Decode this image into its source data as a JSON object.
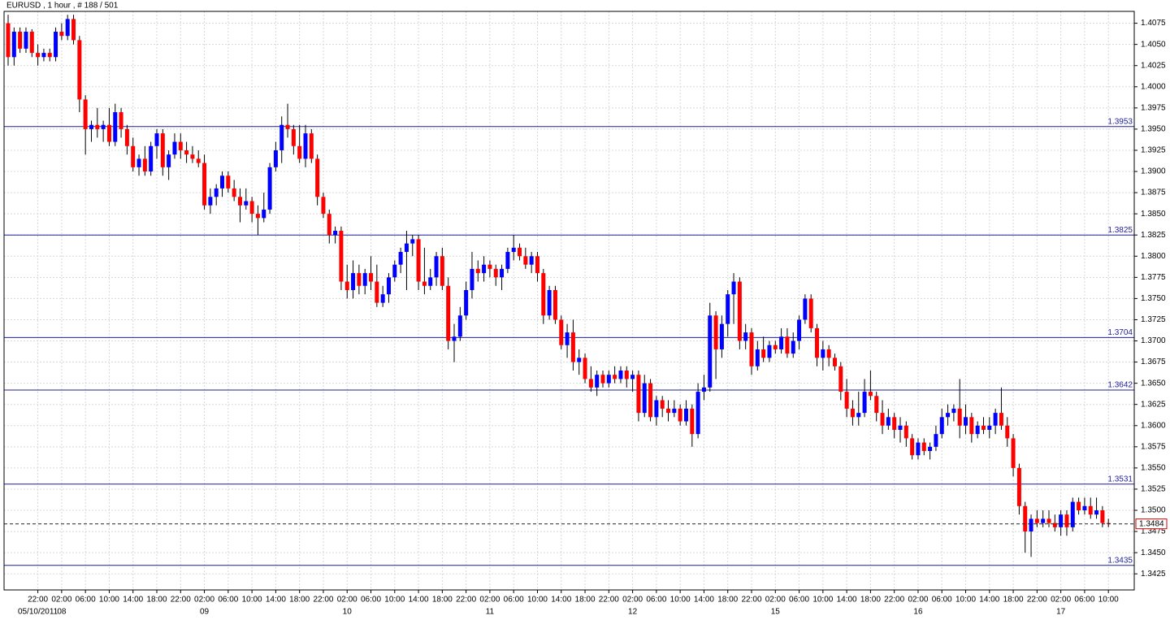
{
  "chart_data": {
    "type": "candlestick",
    "title": "EURUSD , 1 hour , # 188 / 501",
    "bull_color": "#0000ff",
    "bear_color": "#ff0000",
    "wick_color": "#000000",
    "level_color": "#1f1f9a",
    "grid": true,
    "ylim": [
      1.3406,
      1.4089
    ],
    "yticks": [
      1.4075,
      {
        "value": 1.405,
        "label": "1.4050"
      },
      1.4025,
      {
        "value": 1.4,
        "label": "1.4000"
      },
      1.3975,
      {
        "value": 1.395,
        "label": "1.3950"
      },
      1.3925,
      {
        "value": 1.39,
        "label": "1.3900"
      },
      1.3875,
      {
        "value": 1.385,
        "label": "1.3850"
      },
      1.3825,
      {
        "value": 1.38,
        "label": "1.3800"
      },
      1.3775,
      {
        "value": 1.375,
        "label": "1.3750"
      },
      1.3725,
      {
        "value": 1.37,
        "label": "1.3700"
      },
      1.3675,
      {
        "value": 1.365,
        "label": "1.3650"
      },
      1.3625,
      {
        "value": 1.36,
        "label": "1.3600"
      },
      1.3575,
      {
        "value": 1.355,
        "label": "1.3550"
      },
      1.3525,
      {
        "value": 1.35,
        "label": "1.3500"
      },
      1.3475,
      {
        "value": 1.345,
        "label": "1.3450"
      },
      1.3425
    ],
    "levels": [
      1.3953,
      1.3825,
      1.3704,
      1.3642,
      1.3531,
      1.3435
    ],
    "last_price": 1.3484,
    "time_labels": [
      "22:00",
      "02:00",
      "06:00",
      "10:00",
      "14:00",
      "18:00",
      "22:00",
      "02:00",
      "06:00",
      "10:00",
      "14:00",
      "18:00",
      "22:00",
      "02:00",
      "06:00",
      "10:00",
      "14:00",
      "18:00",
      "22:00",
      "02:00",
      "06:00",
      "10:00",
      "14:00",
      "18:00",
      "22:00",
      "02:00",
      "06:00",
      "10:00",
      "14:00",
      "18:00",
      "22:00",
      "02:00",
      "06:00",
      "10:00",
      "14:00",
      "18:00",
      "22:00",
      "02:00",
      "06:00",
      "10:00",
      "14:00",
      "18:00",
      "22:00",
      "02:00",
      "06:00",
      "10:00"
    ],
    "dates": [
      "05/10/2011",
      "08",
      null,
      null,
      null,
      null,
      null,
      "09",
      null,
      null,
      null,
      null,
      null,
      "10",
      null,
      null,
      null,
      null,
      null,
      "11",
      null,
      null,
      null,
      null,
      null,
      "12",
      null,
      null,
      null,
      null,
      null,
      "15",
      null,
      null,
      null,
      null,
      null,
      "16",
      null,
      null,
      null,
      null,
      null,
      "17",
      null,
      null
    ],
    "candles": [
      [
        1.4075,
        1.4085,
        1.4025,
        1.4035
      ],
      [
        1.4035,
        1.407,
        1.4025,
        1.4065
      ],
      [
        1.4065,
        1.407,
        1.404,
        1.4045
      ],
      [
        1.4045,
        1.407,
        1.404,
        1.4065
      ],
      [
        1.4065,
        1.4068,
        1.4035,
        1.404
      ],
      [
        1.404,
        1.405,
        1.4025,
        1.4035
      ],
      [
        1.4035,
        1.4045,
        1.403,
        1.404
      ],
      [
        1.404,
        1.4045,
        1.403,
        1.4035
      ],
      [
        1.4035,
        1.407,
        1.403,
        1.4065
      ],
      [
        1.4065,
        1.4075,
        1.4055,
        1.406
      ],
      [
        1.406,
        1.4085,
        1.4055,
        1.408
      ],
      [
        1.408,
        1.4085,
        1.405,
        1.4055
      ],
      [
        1.4055,
        1.406,
        1.397,
        1.3985
      ],
      [
        1.3985,
        1.399,
        1.392,
        1.395
      ],
      [
        1.395,
        1.396,
        1.3935,
        1.3955
      ],
      [
        1.3955,
        1.3975,
        1.394,
        1.395
      ],
      [
        1.395,
        1.396,
        1.3935,
        1.3955
      ],
      [
        1.3955,
        1.3975,
        1.393,
        1.3935
      ],
      [
        1.3935,
        1.398,
        1.393,
        1.397
      ],
      [
        1.397,
        1.3975,
        1.394,
        1.395
      ],
      [
        1.395,
        1.3955,
        1.392,
        1.393
      ],
      [
        1.393,
        1.394,
        1.39,
        1.3905
      ],
      [
        1.3905,
        1.392,
        1.3895,
        1.3915
      ],
      [
        1.3915,
        1.393,
        1.3895,
        1.39
      ],
      [
        1.39,
        1.3935,
        1.3895,
        1.393
      ],
      [
        1.393,
        1.395,
        1.3915,
        1.3945
      ],
      [
        1.3945,
        1.395,
        1.3895,
        1.3905
      ],
      [
        1.3905,
        1.3925,
        1.389,
        1.392
      ],
      [
        1.392,
        1.3945,
        1.3915,
        1.3935
      ],
      [
        1.3935,
        1.3945,
        1.3915,
        1.3925
      ],
      [
        1.3925,
        1.3935,
        1.391,
        1.392
      ],
      [
        1.392,
        1.393,
        1.391,
        1.3915
      ],
      [
        1.3915,
        1.3925,
        1.3905,
        1.391
      ],
      [
        1.391,
        1.392,
        1.3855,
        1.386
      ],
      [
        1.386,
        1.388,
        1.385,
        1.387
      ],
      [
        1.387,
        1.3885,
        1.386,
        1.388
      ],
      [
        1.388,
        1.39,
        1.387,
        1.3895
      ],
      [
        1.3895,
        1.39,
        1.3875,
        1.388
      ],
      [
        1.388,
        1.389,
        1.3865,
        1.387
      ],
      [
        1.387,
        1.388,
        1.384,
        1.386
      ],
      [
        1.386,
        1.388,
        1.3855,
        1.3865
      ],
      [
        1.3865,
        1.387,
        1.384,
        1.385
      ],
      [
        1.385,
        1.386,
        1.3825,
        1.3845
      ],
      [
        1.3845,
        1.3875,
        1.384,
        1.3855
      ],
      [
        1.3855,
        1.391,
        1.385,
        1.3905
      ],
      [
        1.3905,
        1.3935,
        1.39,
        1.3925
      ],
      [
        1.3925,
        1.3965,
        1.391,
        1.3955
      ],
      [
        1.3955,
        1.398,
        1.394,
        1.395
      ],
      [
        1.395,
        1.3955,
        1.392,
        1.393
      ],
      [
        1.393,
        1.3955,
        1.391,
        1.3915
      ],
      [
        1.3915,
        1.3955,
        1.3905,
        1.3945
      ],
      [
        1.3945,
        1.395,
        1.391,
        1.3915
      ],
      [
        1.3915,
        1.392,
        1.386,
        1.387
      ],
      [
        1.387,
        1.3875,
        1.3845,
        1.385
      ],
      [
        1.385,
        1.3855,
        1.3815,
        1.3825
      ],
      [
        1.3825,
        1.3835,
        1.3815,
        1.383
      ],
      [
        1.383,
        1.3835,
        1.376,
        1.377
      ],
      [
        1.377,
        1.379,
        1.375,
        1.376
      ],
      [
        1.376,
        1.3795,
        1.375,
        1.378
      ],
      [
        1.378,
        1.379,
        1.3755,
        1.3765
      ],
      [
        1.3765,
        1.3785,
        1.3755,
        1.378
      ],
      [
        1.378,
        1.38,
        1.376,
        1.377
      ],
      [
        1.377,
        1.379,
        1.374,
        1.3745
      ],
      [
        1.3745,
        1.3765,
        1.374,
        1.3755
      ],
      [
        1.3755,
        1.378,
        1.3745,
        1.3775
      ],
      [
        1.3775,
        1.3795,
        1.377,
        1.379
      ],
      [
        1.379,
        1.381,
        1.378,
        1.3805
      ],
      [
        1.3805,
        1.383,
        1.376,
        1.3815
      ],
      [
        1.3815,
        1.3825,
        1.38,
        1.382
      ],
      [
        1.382,
        1.3825,
        1.376,
        1.377
      ],
      [
        1.377,
        1.381,
        1.3755,
        1.3765
      ],
      [
        1.3765,
        1.3785,
        1.376,
        1.3775
      ],
      [
        1.3775,
        1.3805,
        1.3765,
        1.38
      ],
      [
        1.38,
        1.381,
        1.376,
        1.3765
      ],
      [
        1.3765,
        1.3775,
        1.369,
        1.37
      ],
      [
        1.37,
        1.372,
        1.3675,
        1.3705
      ],
      [
        1.3705,
        1.374,
        1.37,
        1.373
      ],
      [
        1.373,
        1.377,
        1.3725,
        1.376
      ],
      [
        1.376,
        1.3805,
        1.375,
        1.3785
      ],
      [
        1.3785,
        1.3795,
        1.377,
        1.378
      ],
      [
        1.378,
        1.38,
        1.377,
        1.379
      ],
      [
        1.379,
        1.3795,
        1.3775,
        1.3785
      ],
      [
        1.3785,
        1.379,
        1.3765,
        1.3775
      ],
      [
        1.3775,
        1.379,
        1.376,
        1.3785
      ],
      [
        1.3785,
        1.381,
        1.378,
        1.3805
      ],
      [
        1.3805,
        1.3825,
        1.3795,
        1.381
      ],
      [
        1.381,
        1.3815,
        1.3795,
        1.38
      ],
      [
        1.38,
        1.381,
        1.3785,
        1.379
      ],
      [
        1.379,
        1.3805,
        1.378,
        1.38
      ],
      [
        1.38,
        1.3805,
        1.377,
        1.378
      ],
      [
        1.378,
        1.3785,
        1.372,
        1.373
      ],
      [
        1.373,
        1.3765,
        1.3725,
        1.376
      ],
      [
        1.376,
        1.3765,
        1.372,
        1.3725
      ],
      [
        1.3725,
        1.373,
        1.369,
        1.3695
      ],
      [
        1.3695,
        1.372,
        1.368,
        1.371
      ],
      [
        1.371,
        1.3725,
        1.3665,
        1.3675
      ],
      [
        1.3675,
        1.369,
        1.366,
        1.368
      ],
      [
        1.368,
        1.3685,
        1.365,
        1.3655
      ],
      [
        1.3655,
        1.367,
        1.364,
        1.3645
      ],
      [
        1.3645,
        1.3665,
        1.3635,
        1.366
      ],
      [
        1.366,
        1.3665,
        1.3645,
        1.365
      ],
      [
        1.365,
        1.3665,
        1.3645,
        1.366
      ],
      [
        1.366,
        1.367,
        1.365,
        1.3655
      ],
      [
        1.3655,
        1.367,
        1.365,
        1.3665
      ],
      [
        1.3665,
        1.367,
        1.3645,
        1.3655
      ],
      [
        1.3655,
        1.3665,
        1.364,
        1.366
      ],
      [
        1.366,
        1.3665,
        1.3605,
        1.3615
      ],
      [
        1.3615,
        1.366,
        1.361,
        1.365
      ],
      [
        1.365,
        1.3655,
        1.3605,
        1.361
      ],
      [
        1.361,
        1.3635,
        1.36,
        1.363
      ],
      [
        1.363,
        1.3635,
        1.361,
        1.362
      ],
      [
        1.362,
        1.363,
        1.3605,
        1.3615
      ],
      [
        1.3615,
        1.363,
        1.361,
        1.362
      ],
      [
        1.362,
        1.3625,
        1.36,
        1.3605
      ],
      [
        1.3605,
        1.363,
        1.36,
        1.362
      ],
      [
        1.362,
        1.3625,
        1.3575,
        1.359
      ],
      [
        1.359,
        1.365,
        1.3585,
        1.364
      ],
      [
        1.364,
        1.366,
        1.363,
        1.3645
      ],
      [
        1.3645,
        1.3745,
        1.364,
        1.373
      ],
      [
        1.373,
        1.3735,
        1.3655,
        1.369
      ],
      [
        1.369,
        1.373,
        1.368,
        1.372
      ],
      [
        1.372,
        1.376,
        1.3705,
        1.3755
      ],
      [
        1.3755,
        1.378,
        1.372,
        1.377
      ],
      [
        1.377,
        1.3775,
        1.369,
        1.37
      ],
      [
        1.37,
        1.372,
        1.369,
        1.371
      ],
      [
        1.371,
        1.3715,
        1.366,
        1.367
      ],
      [
        1.367,
        1.37,
        1.3665,
        1.369
      ],
      [
        1.369,
        1.3705,
        1.3675,
        1.368
      ],
      [
        1.368,
        1.37,
        1.3675,
        1.3695
      ],
      [
        1.3695,
        1.37,
        1.3685,
        1.369
      ],
      [
        1.369,
        1.3715,
        1.3685,
        1.3705
      ],
      [
        1.3705,
        1.3715,
        1.368,
        1.3685
      ],
      [
        1.3685,
        1.371,
        1.368,
        1.37
      ],
      [
        1.37,
        1.373,
        1.369,
        1.3725
      ],
      [
        1.3725,
        1.3755,
        1.372,
        1.375
      ],
      [
        1.375,
        1.3755,
        1.371,
        1.3715
      ],
      [
        1.3715,
        1.372,
        1.367,
        1.368
      ],
      [
        1.368,
        1.37,
        1.3665,
        1.369
      ],
      [
        1.369,
        1.3695,
        1.367,
        1.368
      ],
      [
        1.368,
        1.3685,
        1.3665,
        1.367
      ],
      [
        1.367,
        1.3675,
        1.363,
        1.364
      ],
      [
        1.364,
        1.3655,
        1.361,
        1.362
      ],
      [
        1.362,
        1.363,
        1.36,
        1.361
      ],
      [
        1.361,
        1.364,
        1.36,
        1.3615
      ],
      [
        1.3615,
        1.3655,
        1.361,
        1.364
      ],
      [
        1.364,
        1.3665,
        1.363,
        1.3635
      ],
      [
        1.3635,
        1.364,
        1.3605,
        1.3615
      ],
      [
        1.3615,
        1.363,
        1.359,
        1.36
      ],
      [
        1.36,
        1.362,
        1.3595,
        1.361
      ],
      [
        1.361,
        1.3615,
        1.3585,
        1.3595
      ],
      [
        1.3595,
        1.361,
        1.358,
        1.36
      ],
      [
        1.36,
        1.3605,
        1.3575,
        1.3585
      ],
      [
        1.3585,
        1.359,
        1.356,
        1.3565
      ],
      [
        1.3565,
        1.3585,
        1.356,
        1.358
      ],
      [
        1.358,
        1.3585,
        1.3565,
        1.357
      ],
      [
        1.357,
        1.358,
        1.356,
        1.3575
      ],
      [
        1.3575,
        1.36,
        1.357,
        1.359
      ],
      [
        1.359,
        1.362,
        1.3585,
        1.361
      ],
      [
        1.361,
        1.3625,
        1.36,
        1.3615
      ],
      [
        1.3615,
        1.3625,
        1.3605,
        1.362
      ],
      [
        1.362,
        1.3655,
        1.3585,
        1.36
      ],
      [
        1.36,
        1.3625,
        1.359,
        1.361
      ],
      [
        1.361,
        1.3615,
        1.358,
        1.359
      ],
      [
        1.359,
        1.3605,
        1.3585,
        1.36
      ],
      [
        1.36,
        1.361,
        1.359,
        1.3595
      ],
      [
        1.3595,
        1.361,
        1.3585,
        1.36
      ],
      [
        1.36,
        1.362,
        1.359,
        1.3615
      ],
      [
        1.3615,
        1.3645,
        1.3595,
        1.36
      ],
      [
        1.36,
        1.361,
        1.3575,
        1.3585
      ],
      [
        1.3585,
        1.359,
        1.354,
        1.355
      ],
      [
        1.355,
        1.3555,
        1.3495,
        1.3505
      ],
      [
        1.3505,
        1.351,
        1.345,
        1.3475
      ],
      [
        1.3475,
        1.3495,
        1.3445,
        1.349
      ],
      [
        1.349,
        1.35,
        1.348,
        1.3485
      ],
      [
        1.3485,
        1.35,
        1.348,
        1.349
      ],
      [
        1.349,
        1.35,
        1.348,
        1.3485
      ],
      [
        1.3485,
        1.3495,
        1.3475,
        1.348
      ],
      [
        1.348,
        1.35,
        1.347,
        1.3495
      ],
      [
        1.3495,
        1.35,
        1.347,
        1.348
      ],
      [
        1.348,
        1.3515,
        1.3475,
        1.351
      ],
      [
        1.351,
        1.3515,
        1.3495,
        1.35
      ],
      [
        1.35,
        1.3515,
        1.3495,
        1.3505
      ],
      [
        1.3505,
        1.3515,
        1.349,
        1.3495
      ],
      [
        1.3495,
        1.3515,
        1.349,
        1.35
      ],
      [
        1.35,
        1.3505,
        1.348,
        1.3485
      ],
      [
        1.3485,
        1.349,
        1.348,
        1.3484
      ]
    ]
  }
}
